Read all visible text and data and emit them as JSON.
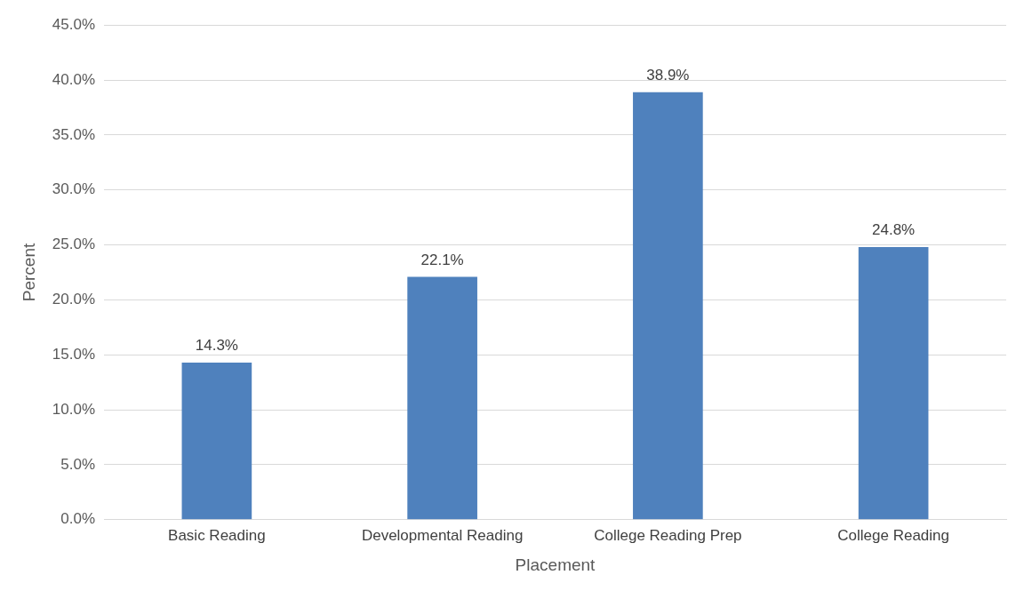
{
  "chart_data": {
    "type": "bar",
    "xlabel": "Placement",
    "ylabel": "Percent",
    "categories": [
      "Basic Reading",
      "Developmental Reading",
      "College Reading Prep",
      "College Reading"
    ],
    "values": [
      14.3,
      22.1,
      38.9,
      24.8
    ],
    "color": "#4f81bd",
    "value_labels": [
      "14.3%",
      "22.1%",
      "38.9%",
      "24.8%"
    ],
    "ylim": [
      0,
      45
    ],
    "yticks": [
      {
        "value": 0,
        "label": "0.0%"
      },
      {
        "value": 5,
        "label": "5.0%"
      },
      {
        "value": 10,
        "label": "10.0%"
      },
      {
        "value": 15,
        "label": "15.0%"
      },
      {
        "value": 20,
        "label": "20.0%"
      },
      {
        "value": 25,
        "label": "25.0%"
      },
      {
        "value": 30,
        "label": "30.0%"
      },
      {
        "value": 35,
        "label": "35.0%"
      },
      {
        "value": 40,
        "label": "40.0%"
      },
      {
        "value": 45,
        "label": "45.0%"
      }
    ],
    "grid": "y",
    "legend": false
  }
}
